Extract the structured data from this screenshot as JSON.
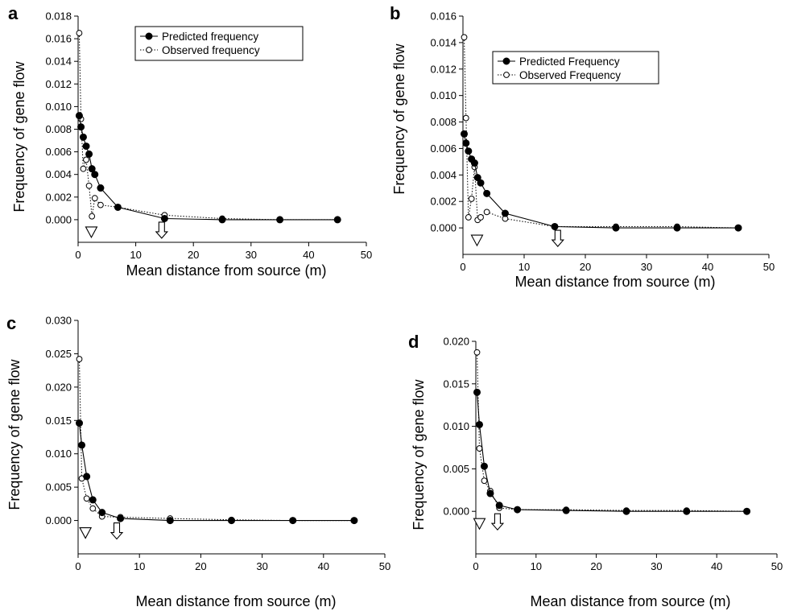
{
  "chart_data": [
    {
      "panel": "a",
      "type": "line",
      "xlabel": "Mean distance from source (m)",
      "ylabel": "Frequency of gene flow",
      "xlim": [
        0,
        50
      ],
      "ylim": [
        -0.002,
        0.018
      ],
      "xticks": [
        "0",
        "10",
        "20",
        "30",
        "40",
        "50"
      ],
      "yticks": [
        "0.000",
        "0.002",
        "0.004",
        "0.006",
        "0.008",
        "0.010",
        "0.012",
        "0.014",
        "0.016",
        "0.018"
      ],
      "legend": {
        "position": "top-center",
        "entries": [
          "Predicted frequency",
          "Observed frequency"
        ]
      },
      "series": [
        {
          "name": "Predicted frequency",
          "style": "solid-filled",
          "x": [
            0.2,
            0.5,
            0.9,
            1.4,
            1.9,
            2.4,
            2.9,
            3.9,
            6.9,
            15,
            25,
            35,
            45
          ],
          "y": [
            0.0092,
            0.0082,
            0.0073,
            0.0065,
            0.0058,
            0.0045,
            0.004,
            0.0028,
            0.0011,
            0.0001,
            0.0,
            0.0,
            0.0
          ]
        },
        {
          "name": "Observed frequency",
          "style": "dotted-open",
          "x": [
            0.2,
            0.5,
            0.9,
            1.4,
            1.9,
            2.4,
            2.9,
            3.9,
            6.9,
            15,
            25,
            35,
            45
          ],
          "y": [
            0.0165,
            0.0089,
            0.0045,
            0.0053,
            0.003,
            0.0003,
            0.0019,
            0.0013,
            0.0011,
            0.0004,
            0.0001,
            0.0,
            0.0
          ]
        }
      ],
      "markers": {
        "triangle_x": 2.3,
        "arrow_x": 14.5
      }
    },
    {
      "panel": "b",
      "type": "line",
      "xlabel": "Mean distance from source (m)",
      "ylabel": "Frequency of gene flow",
      "xlim": [
        0,
        50
      ],
      "ylim": [
        -0.002,
        0.016
      ],
      "xticks": [
        "0",
        "10",
        "20",
        "30",
        "40",
        "50"
      ],
      "yticks": [
        "0.000",
        "0.002",
        "0.004",
        "0.006",
        "0.008",
        "0.010",
        "0.012",
        "0.014",
        "0.016"
      ],
      "legend": {
        "position": "top-center",
        "entries": [
          "Predicted Frequency",
          "Observed Frequency"
        ]
      },
      "series": [
        {
          "name": "Predicted Frequency",
          "style": "solid-filled",
          "x": [
            0.2,
            0.5,
            0.9,
            1.4,
            1.9,
            2.4,
            2.9,
            3.9,
            6.9,
            15,
            25,
            35,
            45
          ],
          "y": [
            0.0071,
            0.0064,
            0.0058,
            0.0052,
            0.0049,
            0.0038,
            0.0034,
            0.0026,
            0.0011,
            0.0001,
            0.0,
            0.0,
            0.0
          ]
        },
        {
          "name": "Observed Frequency",
          "style": "dotted-open",
          "x": [
            0.2,
            0.5,
            0.9,
            1.4,
            1.9,
            2.4,
            2.9,
            3.9,
            6.9,
            15,
            25,
            35,
            45
          ],
          "y": [
            0.0144,
            0.0083,
            0.0008,
            0.0022,
            0.0046,
            0.0006,
            0.0008,
            0.0012,
            0.0007,
            0.0001,
            0.0001,
            0.0001,
            0.0
          ]
        }
      ],
      "markers": {
        "triangle_x": 2.3,
        "arrow_x": 15.5
      }
    },
    {
      "panel": "c",
      "type": "line",
      "xlabel": "Mean distance from source (m)",
      "ylabel": "Frequency of gene flow",
      "xlim": [
        0,
        50
      ],
      "ylim": [
        -0.005,
        0.03
      ],
      "xticks": [
        "0",
        "10",
        "20",
        "30",
        "40",
        "50"
      ],
      "yticks": [
        "0.000",
        "0.005",
        "0.010",
        "0.015",
        "0.020",
        "0.025",
        "0.030"
      ],
      "series": [
        {
          "name": "",
          "style": "solid-filled",
          "x": [
            0.2,
            0.6,
            1.4,
            2.4,
            3.9,
            6.9,
            15,
            25,
            35,
            45
          ],
          "y": [
            0.0146,
            0.0113,
            0.0066,
            0.0031,
            0.0012,
            0.0003,
            0.0,
            0.0,
            0.0,
            0.0
          ]
        },
        {
          "name": "",
          "style": "dotted-open",
          "x": [
            0.2,
            0.6,
            1.4,
            2.4,
            3.9,
            6.9,
            15,
            25,
            35,
            45
          ],
          "y": [
            0.0242,
            0.0063,
            0.0033,
            0.0018,
            0.0006,
            0.0005,
            0.0003,
            0.0001,
            0.0,
            0.0
          ]
        }
      ],
      "markers": {
        "triangle_x": 1.2,
        "arrow_x": 6.3
      }
    },
    {
      "panel": "d",
      "type": "line",
      "xlabel": "Mean distance from source (m)",
      "ylabel": "Frequency of gene flow",
      "xlim": [
        0,
        50
      ],
      "ylim": [
        -0.005,
        0.02
      ],
      "xticks": [
        "0",
        "10",
        "20",
        "30",
        "40",
        "50"
      ],
      "yticks": [
        "0.000",
        "0.005",
        "0.010",
        "0.015",
        "0.020"
      ],
      "series": [
        {
          "name": "",
          "style": "solid-filled",
          "x": [
            0.2,
            0.6,
            1.4,
            2.4,
            3.9,
            6.9,
            15,
            25,
            35,
            45
          ],
          "y": [
            0.014,
            0.0102,
            0.0053,
            0.0021,
            0.0007,
            0.0002,
            0.0001,
            0.0,
            0.0,
            0.0
          ]
        },
        {
          "name": "",
          "style": "dotted-open",
          "x": [
            0.2,
            0.6,
            1.4,
            2.4,
            3.9,
            6.9,
            15,
            25,
            35,
            45
          ],
          "y": [
            0.0187,
            0.0074,
            0.0036,
            0.0024,
            0.0004,
            0.0002,
            0.0002,
            0.0001,
            0.0001,
            0.0
          ]
        }
      ],
      "markers": {
        "triangle_x": 0.6,
        "arrow_x": 3.6
      }
    }
  ]
}
